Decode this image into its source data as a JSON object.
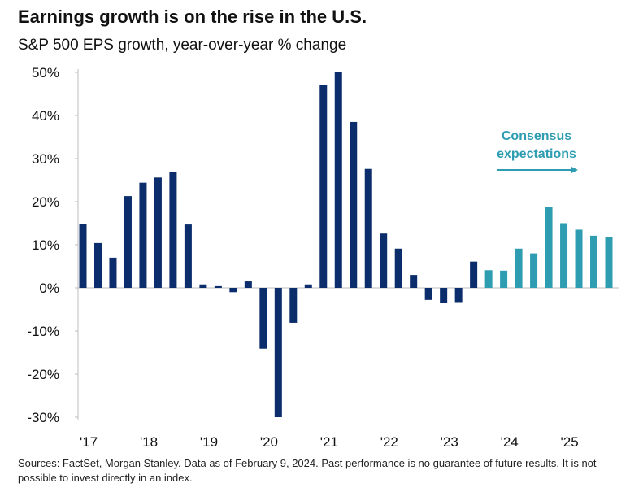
{
  "title": "Earnings growth is on the rise in the U.S.",
  "subtitle": "S&P 500 EPS growth, year-over-year % change",
  "footer": "Sources: FactSet, Morgan Stanley. Data as of February 9, 2024. Past performance is no guarantee of future results. It is not possible to invest directly in an index.",
  "colors": {
    "actual": "#0b2d6b",
    "consensus": "#2e9db1",
    "text": "#111111",
    "axis": "#bdbdbd"
  },
  "chart_data": {
    "type": "bar",
    "title": "Earnings growth is on the rise in the U.S.",
    "subtitle": "S&P 500 EPS growth, year-over-year % change",
    "ylim": [
      -30,
      50
    ],
    "yticks": [
      50,
      40,
      30,
      20,
      10,
      0,
      -10,
      -20,
      -30
    ],
    "ytick_labels": [
      "50%",
      "40%",
      "30%",
      "20%",
      "10%",
      "0%",
      "-10%",
      "-20%",
      "-30%"
    ],
    "year_labels": [
      "'17",
      "'18",
      "'19",
      "'20",
      "'21",
      "'22",
      "'23",
      "'24",
      "'25"
    ],
    "year_label_bar_index": [
      0,
      4,
      8,
      12,
      16,
      20,
      24,
      28,
      32
    ],
    "series": [
      {
        "key": "actual",
        "values": [
          14.8,
          10.4,
          7.0,
          21.3,
          24.4,
          25.6,
          26.8,
          14.7,
          0.8,
          0.4,
          -1.0,
          1.5,
          -14.1,
          -30.0,
          -8.1,
          0.8,
          47.0,
          50.0,
          38.5,
          27.6,
          12.6,
          9.1,
          3.0,
          -2.8,
          -3.5,
          -3.3,
          6.1
        ]
      },
      {
        "key": "consensus",
        "values": [
          4.1,
          4.0,
          9.1,
          8.0,
          18.8,
          15.0,
          13.5,
          12.1,
          11.8
        ]
      }
    ],
    "annotation": {
      "text_lines": [
        "Consensus",
        "expectations"
      ]
    }
  }
}
